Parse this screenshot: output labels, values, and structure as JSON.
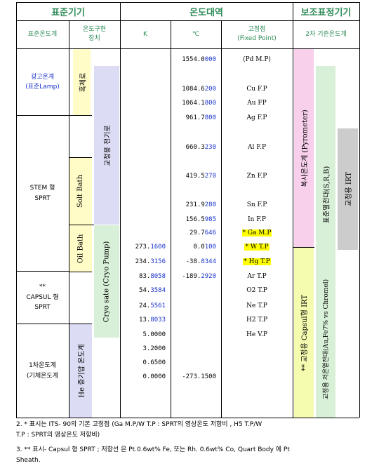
{
  "headers": {
    "standard": "표준기기",
    "range": "온도대역",
    "aux": "보조표정기기"
  },
  "subheaders": {
    "std_thermometer": "표준온도계",
    "device_line1": "온도구현",
    "device_line2": "장치",
    "kelvin": "K",
    "celsius": "℃",
    "fixed_line1": "고정점",
    "fixed_line2": "(Fixed Point)",
    "secondary": "2차 기준온도계"
  },
  "standards": {
    "lamp_line1": "광고온계",
    "lamp_line2": "(표준Lamp)",
    "sprt_line1": "STEM 형",
    "sprt_line2": "SPRT",
    "capsul_line1": "**",
    "capsul_line2": "CAPSUL 형",
    "capsul_line3": "SPRT",
    "gas_line1": "1차온도계",
    "gas_line2": "(기체온도계"
  },
  "devices": {
    "blackbody": "흑체로",
    "calib_furnace": "교정용 전기로",
    "salt_bath": "Solt Bath",
    "oil_bath": "Oil Bath",
    "cryostat": "Cryo sate (Cryo Pump)",
    "he_gas": "He 증기압 온도계"
  },
  "aux_instruments": {
    "pyrometer": "복사온도계 (Pyrometer)",
    "srb": "표준열전대(S,R,B)",
    "irt": "교정용 IRT",
    "capsul_irt": "** 교정용 Capsul형 IRT",
    "low_tc": "교정용 저온열전대(Au,Fe7% vs Chromel)"
  },
  "rows": [
    {
      "k": "",
      "k_blue": "",
      "c": "1554.0",
      "c_blue": "000",
      "fp": "(Pd M.P)",
      "hl": false
    },
    {
      "k": "",
      "k_blue": "",
      "c": "1084.6",
      "c_blue": "200",
      "fp": "Cu F.P",
      "hl": false
    },
    {
      "k": "",
      "k_blue": "",
      "c": "1064.1",
      "c_blue": "800",
      "fp": "Au FP",
      "hl": false
    },
    {
      "k": "",
      "k_blue": "",
      "c": "961.7",
      "c_blue": "800",
      "fp": "Ag F.P",
      "hl": false
    },
    {
      "k": "",
      "k_blue": "",
      "c": "660.3",
      "c_blue": "230",
      "fp": "Al F.P",
      "hl": false
    },
    {
      "k": "",
      "k_blue": "",
      "c": "419.5",
      "c_blue": "270",
      "fp": "Zn F.P",
      "hl": false
    },
    {
      "k": "",
      "k_blue": "",
      "c": "231.9",
      "c_blue": "280",
      "fp": "Sn F.P",
      "hl": false
    },
    {
      "k": "",
      "k_blue": "",
      "c": "156.5",
      "c_blue": "985",
      "fp": "In F.P",
      "hl": false
    },
    {
      "k": "",
      "k_blue": "",
      "c": "29.7",
      "c_blue": "646",
      "fp": "* Ga M.P",
      "hl": true
    },
    {
      "k": "273.",
      "k_blue": "1600",
      "c": "0.0",
      "c_blue": "100",
      "fp": "* W T.P",
      "hl": true
    },
    {
      "k": "234.",
      "k_blue": "3156",
      "c": "-38.",
      "c_blue": "8344",
      "fp": "* Hg T.P",
      "hl": true
    },
    {
      "k": "83.",
      "k_blue": "8058",
      "c": "-189.",
      "c_blue": "2920",
      "fp": "Ar T.P",
      "hl": false
    },
    {
      "k": "54.",
      "k_blue": "3584",
      "c": "",
      "c_blue": "",
      "fp": "O2 T.P",
      "hl": false
    },
    {
      "k": "24.",
      "k_blue": "5561",
      "c": "",
      "c_blue": "",
      "fp": "Ne T.P",
      "hl": false
    },
    {
      "k": "13.",
      "k_blue": "8033",
      "c": "",
      "c_blue": "",
      "fp": "H2 T.P",
      "hl": false
    },
    {
      "k": "5.0000",
      "k_blue": "",
      "c": "",
      "c_blue": "",
      "fp": "He V.P",
      "hl": false
    },
    {
      "k": "3.2000",
      "k_blue": "",
      "c": "",
      "c_blue": "",
      "fp": "",
      "hl": false
    },
    {
      "k": "0.6500",
      "k_blue": "",
      "c": "",
      "c_blue": "",
      "fp": "",
      "hl": false
    },
    {
      "k": "0.0000",
      "k_blue": "",
      "c": "-273.1500",
      "c_blue": "",
      "fp": "",
      "hl": false
    }
  ],
  "notes": {
    "n2_line1": "2.  * 표시는 ITS- 90의 기본 고정점  (Ga M.P/W T.P : SPRT의 영상온도 저항비 , H5 T.P/W",
    "n2_line2": "T.P : SPRT의 영상온도 저항비)",
    "n3_line1": "3. ** 표시- Capsul 형 SPRT ; 저항선 은 Pt.0.6wt% Fe, 또는 Rh. 0.6wt% Co, Quart Body 에 Pt",
    "n3_line2": "Sheath."
  },
  "colors": {
    "header_text": "#2e8b57",
    "blue_digits": "#1a33cc",
    "highlight": "#ffff00",
    "lavender": "#dcdcf4",
    "light_yellow": "#fffcc8",
    "pink": "#f8d0ec",
    "light_green": "#d8f0d8",
    "gray": "#cccccc",
    "yellow_green": "#f5fcb0"
  }
}
